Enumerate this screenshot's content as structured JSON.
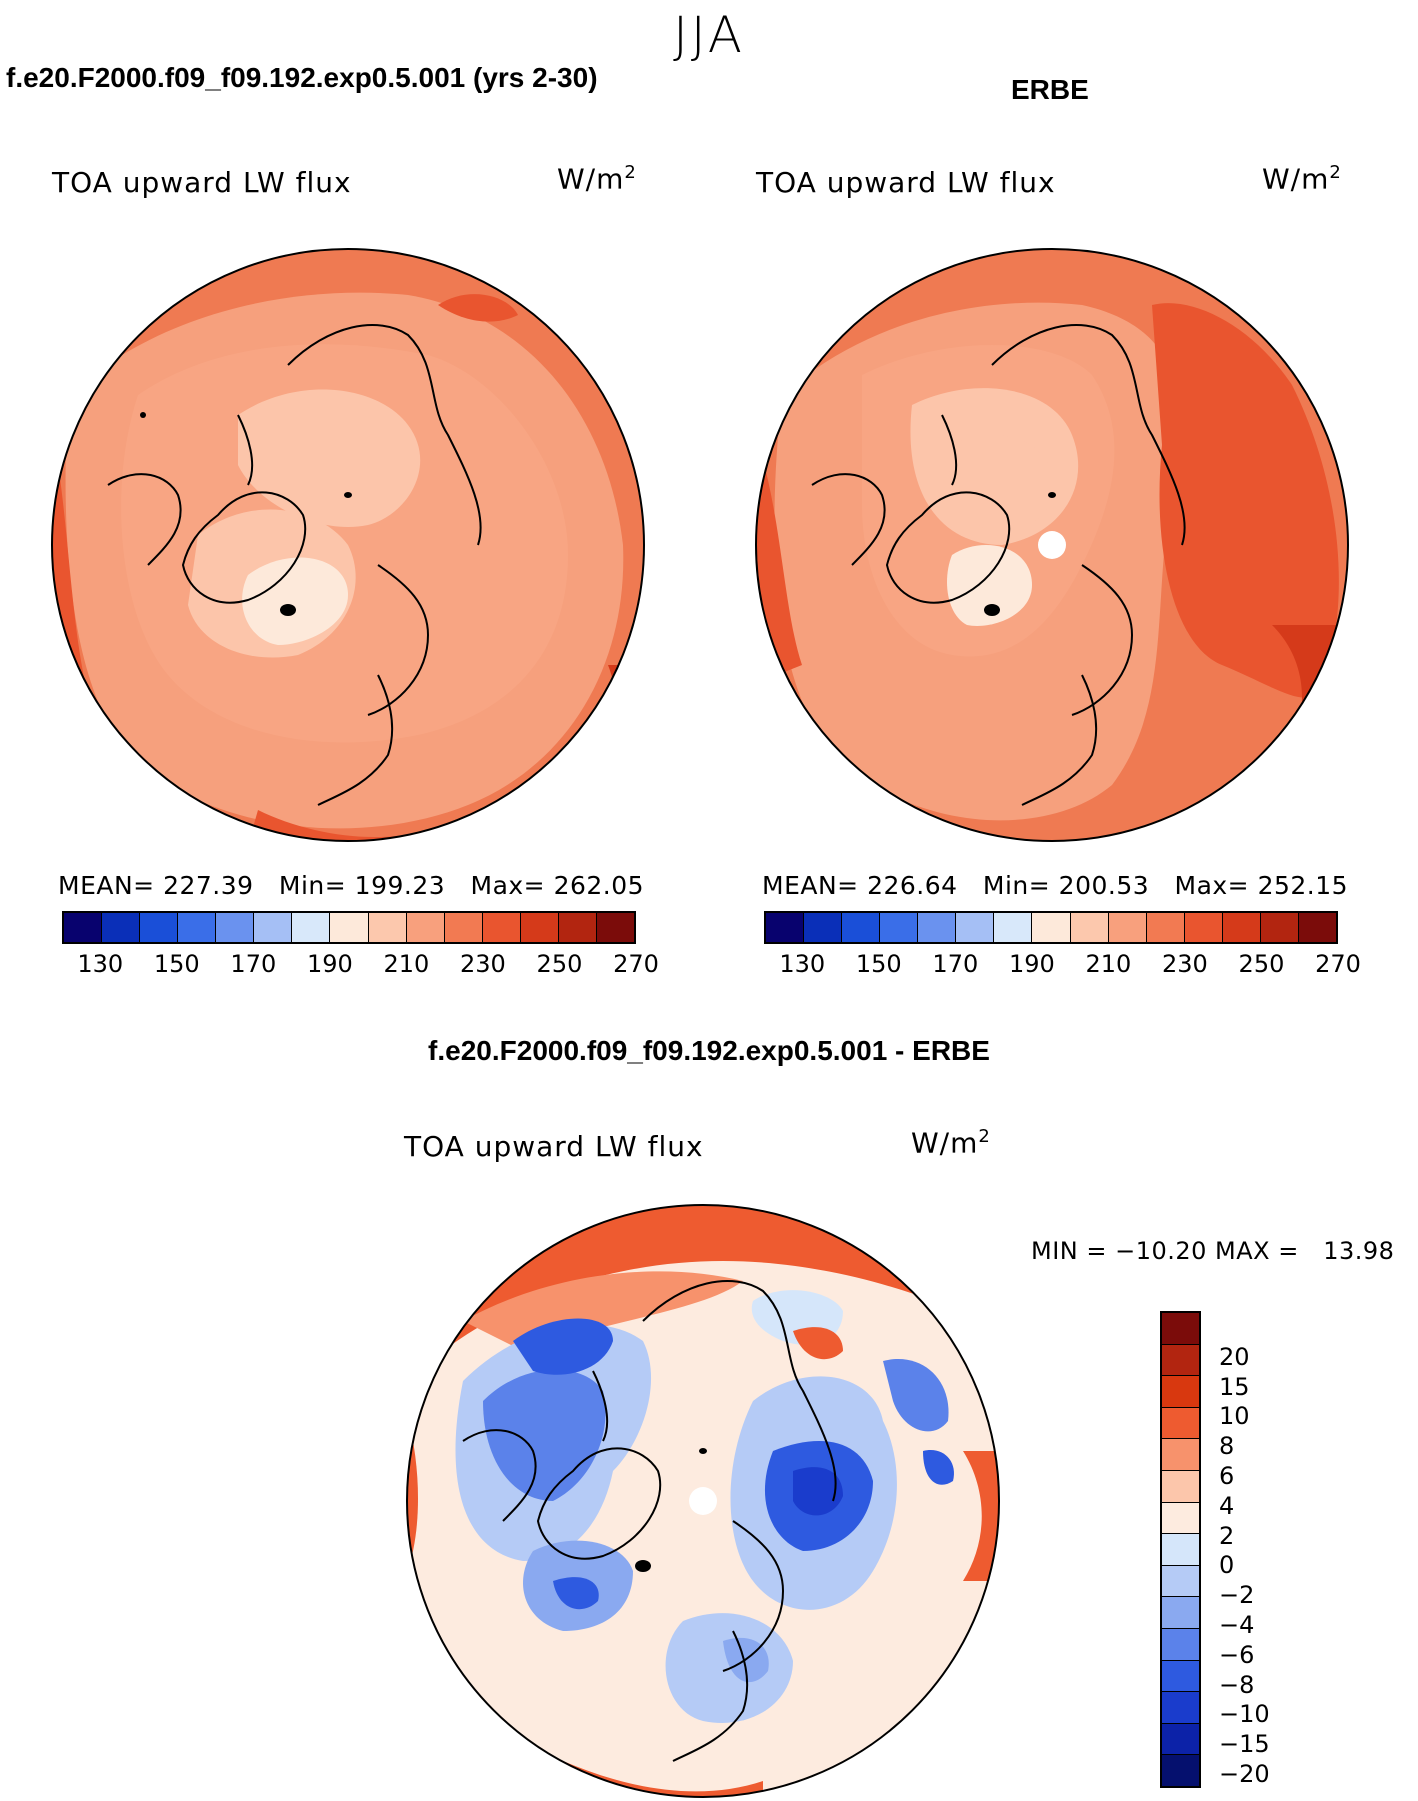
{
  "season": "JJA",
  "panels": {
    "model": {
      "title": "f.e20.F2000.f09_f09.192.exp0.5.001 (yrs 2-30)",
      "variable": "TOA upward LW flux",
      "units_base": "W/m",
      "units_exp": "2",
      "mean_label": "MEAN=",
      "mean_value": "227.39",
      "min_label": "Min=",
      "min_value": "199.23",
      "max_label": "Max=",
      "max_value": "262.05"
    },
    "obs": {
      "title": "ERBE",
      "variable": "TOA upward LW flux",
      "units_base": "W/m",
      "units_exp": "2",
      "mean_label": "MEAN=",
      "mean_value": "226.64",
      "min_label": "Min=",
      "min_value": "200.53",
      "max_label": "Max=",
      "max_value": "252.15"
    },
    "diff": {
      "title": "f.e20.F2000.f09_f09.192.exp0.5.001 - ERBE",
      "variable": "TOA upward LW flux",
      "units_base": "W/m",
      "units_exp": "2",
      "minmax_text": "MIN = −10.20 MAX =   13.98"
    }
  },
  "colorbars": {
    "abs": {
      "colors": [
        "#08026e",
        "#0a2fb8",
        "#1a4fd8",
        "#3a6ee8",
        "#6a92ef",
        "#a5bff5",
        "#d8e8fa",
        "#fde9da",
        "#fcc8ad",
        "#f8a07d",
        "#f27a52",
        "#e9552f",
        "#d53a1a",
        "#b22510",
        "#7b0c0a"
      ],
      "tick_labels": [
        "130",
        "150",
        "170",
        "190",
        "210",
        "230",
        "250",
        "270"
      ]
    },
    "diff": {
      "colors": [
        "#7b0c0a",
        "#b22510",
        "#d8380f",
        "#ee5b30",
        "#f7926c",
        "#fcc6ab",
        "#fdebdf",
        "#d5e6fa",
        "#b5cbf6",
        "#8aa9f0",
        "#5b82ea",
        "#2e5ae0",
        "#1a3ccc",
        "#0c22a8",
        "#05106e"
      ],
      "tick_labels": [
        "20",
        "15",
        "10",
        "8",
        "6",
        "4",
        "2",
        "0",
        "−2",
        "−4",
        "−6",
        "−8",
        "−10",
        "−15",
        "−20"
      ]
    }
  }
}
